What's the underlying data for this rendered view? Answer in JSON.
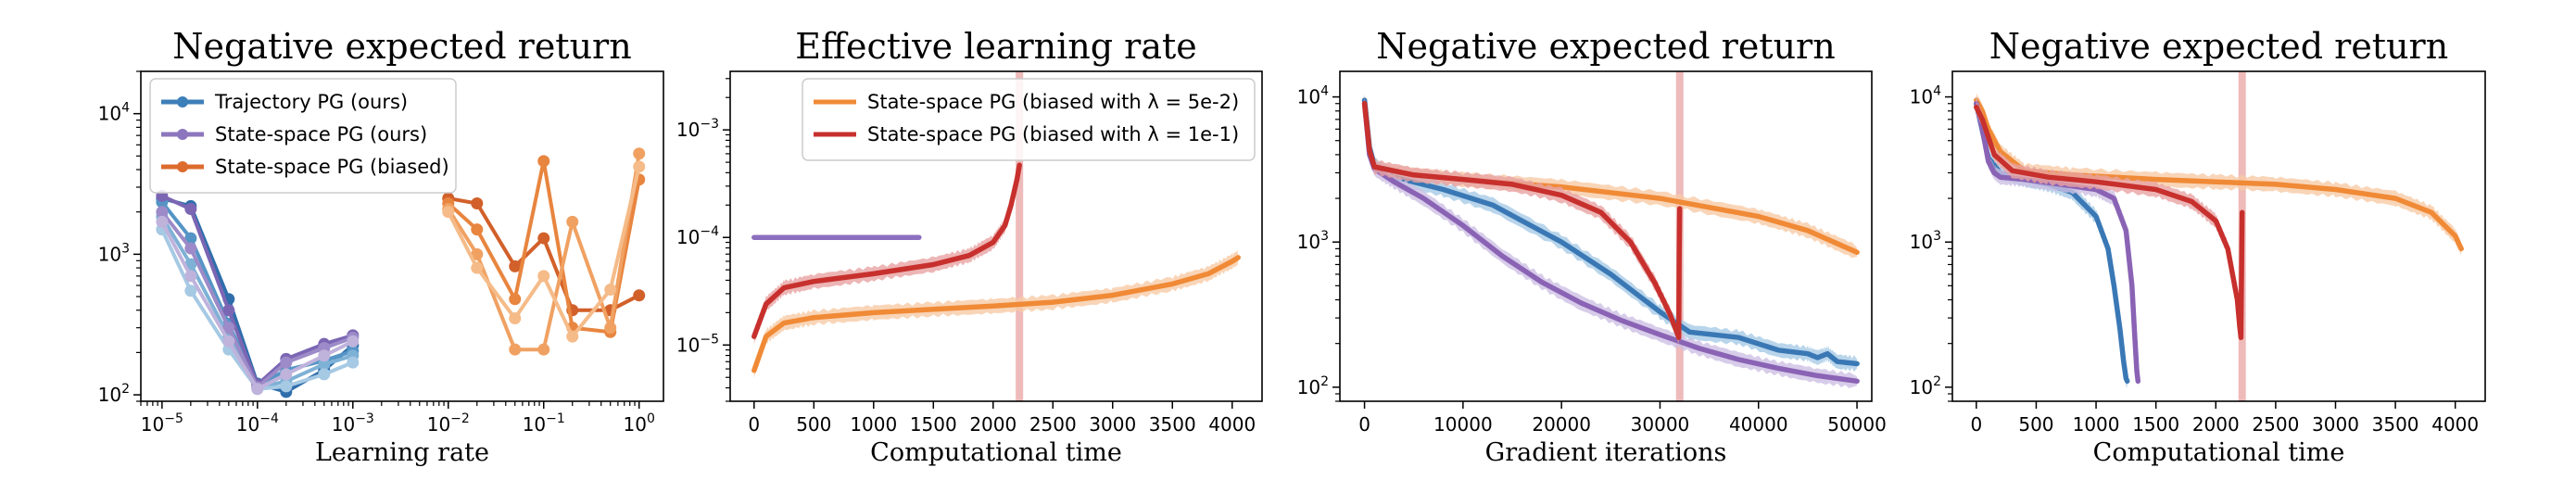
{
  "chart_data": [
    {
      "type": "line",
      "title": "Negative expected return",
      "xlabel": "Learning rate",
      "ylabel": "",
      "xscale": "log",
      "yscale": "log",
      "xlim": [
        6e-06,
        1.8
      ],
      "ylim": [
        90,
        20000
      ],
      "xticks": [
        {
          "v": 1e-05,
          "b": "10",
          "e": "−5"
        },
        {
          "v": 0.0001,
          "b": "10",
          "e": "−4"
        },
        {
          "v": 0.001,
          "b": "10",
          "e": "−3"
        },
        {
          "v": 0.01,
          "b": "10",
          "e": "−2"
        },
        {
          "v": 0.1,
          "b": "10",
          "e": "−1"
        },
        {
          "v": 1,
          "b": "10",
          "e": "0"
        }
      ],
      "yticks": [
        {
          "v": 100,
          "b": "10",
          "e": "2"
        },
        {
          "v": 1000,
          "b": "10",
          "e": "3"
        },
        {
          "v": 10000,
          "b": "10",
          "e": "4"
        }
      ],
      "legend": {
        "position": "top-left",
        "entries": [
          {
            "label": "Trajectory PG (ours)",
            "color": "#3d7fb8"
          },
          {
            "label": "State-space PG (ours)",
            "color": "#8c76bd"
          },
          {
            "label": "State-space PG (biased)",
            "color": "#dd6b2d"
          }
        ]
      },
      "series": [
        {
          "name": "Trajectory PG (ours)",
          "color": "#2f6eab",
          "x": [
            1e-05,
            2e-05,
            5e-05,
            0.0001,
            0.0002,
            0.0005,
            0.001
          ],
          "y": [
            2500,
            2200,
            480,
            120,
            105,
            150,
            225
          ]
        },
        {
          "color": "#5595c6",
          "x": [
            1e-05,
            2e-05,
            5e-05,
            0.0001,
            0.0002,
            0.0005,
            0.001
          ],
          "y": [
            2350,
            1300,
            320,
            115,
            150,
            175,
            205
          ]
        },
        {
          "color": "#7eb1d6",
          "x": [
            1e-05,
            2e-05,
            5e-05,
            0.0001,
            0.0002,
            0.0005,
            0.001
          ],
          "y": [
            1850,
            850,
            260,
            112,
            125,
            165,
            190
          ]
        },
        {
          "color": "#a6c9e4",
          "x": [
            1e-05,
            2e-05,
            5e-05,
            0.0001,
            0.0002,
            0.0005,
            0.001
          ],
          "y": [
            1500,
            550,
            210,
            110,
            115,
            140,
            170
          ]
        },
        {
          "name": "State-space PG (ours)",
          "color": "#7b66b4",
          "x": [
            1e-05,
            2e-05,
            5e-05,
            0.0001,
            0.0002,
            0.0005,
            0.001
          ],
          "y": [
            2600,
            2100,
            400,
            118,
            180,
            230,
            265
          ]
        },
        {
          "color": "#9c8bc8",
          "x": [
            1e-05,
            2e-05,
            5e-05,
            0.0001,
            0.0002,
            0.0005,
            0.001
          ],
          "y": [
            2000,
            1100,
            300,
            113,
            170,
            215,
            255
          ]
        },
        {
          "color": "#bfb3dc",
          "x": [
            1e-05,
            2e-05,
            5e-05,
            0.0001,
            0.0002,
            0.0005,
            0.001
          ],
          "y": [
            1700,
            700,
            240,
            110,
            140,
            190,
            240
          ]
        },
        {
          "name": "State-space PG (biased)",
          "color": "#d2602a",
          "x": [
            0.01,
            0.02,
            0.05,
            0.1,
            0.2,
            0.5,
            1
          ],
          "y": [
            2500,
            2300,
            820,
            1300,
            400,
            400,
            510
          ]
        },
        {
          "color": "#e8853f",
          "x": [
            0.01,
            0.02,
            0.05,
            0.1,
            0.2,
            0.5,
            1
          ],
          "y": [
            2300,
            1500,
            480,
            4600,
            300,
            280,
            3400
          ]
        },
        {
          "color": "#f0a162",
          "x": [
            0.01,
            0.02,
            0.05,
            0.1,
            0.2,
            0.5,
            1
          ],
          "y": [
            2100,
            1000,
            210,
            210,
            1700,
            300,
            5200
          ]
        },
        {
          "color": "#f5bb88",
          "x": [
            0.01,
            0.02,
            0.05,
            0.1,
            0.2,
            0.5,
            1
          ],
          "y": [
            2000,
            800,
            350,
            700,
            260,
            560,
            4200
          ]
        }
      ]
    },
    {
      "type": "line",
      "title": "Effective learning rate",
      "xlabel": "Computational time",
      "ylabel": "",
      "xscale": "linear",
      "yscale": "log",
      "xlim": [
        -200,
        4250
      ],
      "ylim": [
        3e-06,
        0.0035
      ],
      "xticks": [
        {
          "v": 0,
          "t": "0"
        },
        {
          "v": 500,
          "t": "500"
        },
        {
          "v": 1000,
          "t": "1000"
        },
        {
          "v": 1500,
          "t": "1500"
        },
        {
          "v": 2000,
          "t": "2000"
        },
        {
          "v": 2500,
          "t": "2500"
        },
        {
          "v": 3000,
          "t": "3000"
        },
        {
          "v": 3500,
          "t": "3500"
        },
        {
          "v": 4000,
          "t": "4000"
        }
      ],
      "yticks": [
        {
          "v": 1e-05,
          "b": "10",
          "e": "−5"
        },
        {
          "v": 0.0001,
          "b": "10",
          "e": "−4"
        },
        {
          "v": 0.001,
          "b": "10",
          "e": "−3"
        }
      ],
      "legend": {
        "position": "top-right",
        "entries": [
          {
            "label": "State-space PG (biased with λ = 5e-2)",
            "color": "#f08a36"
          },
          {
            "label": "State-space PG (biased with λ = 1e-1)",
            "color": "#c7302d"
          }
        ]
      },
      "vlines": [
        {
          "x": 2220,
          "color": "#e9a3a3"
        }
      ],
      "series": [
        {
          "color": "#8c6fbe",
          "x": [
            0,
            1380
          ],
          "y": [
            0.0001,
            0.0001
          ]
        },
        {
          "name": "State-space PG (biased with λ = 1e-1)",
          "color": "#c7302d",
          "band": "#e9a3a3",
          "x": [
            0,
            100,
            250,
            500,
            1000,
            1500,
            1800,
            2000,
            2100,
            2150,
            2200,
            2220
          ],
          "y": [
            1.2e-05,
            2.4e-05,
            3.4e-05,
            3.9e-05,
            4.6e-05,
            5.6e-05,
            6.8e-05,
            9e-05,
            0.00013,
            0.0002,
            0.00035,
            0.00047
          ]
        },
        {
          "name": "State-space PG (biased with λ = 5e-2)",
          "color": "#f08a36",
          "band": "#f8cba6",
          "x": [
            0,
            100,
            250,
            500,
            1000,
            1500,
            2000,
            2500,
            3000,
            3500,
            3800,
            4000,
            4050
          ],
          "y": [
            5.8e-06,
            1.2e-05,
            1.6e-05,
            1.8e-05,
            2e-05,
            2.15e-05,
            2.3e-05,
            2.5e-05,
            2.9e-05,
            3.7e-05,
            4.6e-05,
            6e-05,
            6.5e-05
          ]
        }
      ]
    },
    {
      "type": "line",
      "title": "Negative expected return",
      "xlabel": "Gradient iterations",
      "ylabel": "",
      "xscale": "linear",
      "yscale": "log",
      "xlim": [
        -2500,
        51500
      ],
      "ylim": [
        80,
        15000
      ],
      "xticks": [
        {
          "v": 0,
          "t": "0"
        },
        {
          "v": 10000,
          "t": "10000"
        },
        {
          "v": 20000,
          "t": "20000"
        },
        {
          "v": 30000,
          "t": "30000"
        },
        {
          "v": 40000,
          "t": "40000"
        },
        {
          "v": 50000,
          "t": "50000"
        }
      ],
      "yticks": [
        {
          "v": 100,
          "b": "10",
          "e": "2"
        },
        {
          "v": 1000,
          "b": "10",
          "e": "3"
        },
        {
          "v": 10000,
          "b": "10",
          "e": "4"
        }
      ],
      "vlines": [
        {
          "x": 32000,
          "color": "#e9a3a3"
        }
      ],
      "series": [
        {
          "color": "#f08a36",
          "band": "#f8cba6",
          "x": [
            0,
            500,
            1000,
            2000,
            5000,
            10000,
            20000,
            30000,
            40000,
            45000,
            50000
          ],
          "y": [
            9500,
            4500,
            3400,
            3100,
            2900,
            2700,
            2400,
            2000,
            1500,
            1200,
            850
          ]
        },
        {
          "color": "#3a78b5",
          "band": "#a8cbe6",
          "x": [
            0,
            500,
            1000,
            3000,
            8000,
            13000,
            20000,
            25000,
            30000,
            33000,
            38000,
            42000,
            45000,
            46000,
            47000,
            48000,
            50000
          ],
          "y": [
            9500,
            4500,
            3400,
            2800,
            2300,
            1800,
            1000,
            600,
            330,
            240,
            220,
            180,
            170,
            160,
            170,
            150,
            145
          ]
        },
        {
          "color": "#8a63b5",
          "band": "#cdbfe3",
          "x": [
            0,
            500,
            1000,
            3000,
            6000,
            10000,
            14000,
            18000,
            22000,
            26000,
            30000,
            34000,
            38000,
            42000,
            46000,
            50000
          ],
          "y": [
            9000,
            4000,
            3200,
            2600,
            2000,
            1300,
            800,
            530,
            380,
            290,
            230,
            185,
            155,
            135,
            120,
            110
          ]
        },
        {
          "color": "#c7302d",
          "band": "#e9a3a3",
          "x": [
            0,
            500,
            1000,
            5000,
            10000,
            15000,
            20000,
            24000,
            27000,
            29500,
            31000,
            31800,
            31900,
            31950,
            32000
          ],
          "y": [
            9000,
            4300,
            3300,
            2900,
            2700,
            2500,
            2100,
            1600,
            1000,
            520,
            320,
            230,
            220,
            800,
            1700
          ]
        }
      ]
    },
    {
      "type": "line",
      "title": "Negative expected return",
      "xlabel": "Computational time",
      "ylabel": "",
      "xscale": "linear",
      "yscale": "log",
      "xlim": [
        -200,
        4250
      ],
      "ylim": [
        80,
        15000
      ],
      "xticks": [
        {
          "v": 0,
          "t": "0"
        },
        {
          "v": 500,
          "t": "500"
        },
        {
          "v": 1000,
          "t": "1000"
        },
        {
          "v": 1500,
          "t": "1500"
        },
        {
          "v": 2000,
          "t": "2000"
        },
        {
          "v": 2500,
          "t": "2500"
        },
        {
          "v": 3000,
          "t": "3000"
        },
        {
          "v": 3500,
          "t": "3500"
        },
        {
          "v": 4000,
          "t": "4000"
        }
      ],
      "yticks": [
        {
          "v": 100,
          "b": "10",
          "e": "2"
        },
        {
          "v": 1000,
          "b": "10",
          "e": "3"
        },
        {
          "v": 10000,
          "b": "10",
          "e": "4"
        }
      ],
      "vlines": [
        {
          "x": 2220,
          "color": "#e9a3a3"
        }
      ],
      "series": [
        {
          "color": "#f08a36",
          "band": "#f8cba6",
          "x": [
            0,
            50,
            100,
            200,
            400,
            800,
            1500,
            2000,
            2500,
            3000,
            3500,
            3800,
            4000,
            4050
          ],
          "y": [
            9500,
            8000,
            6000,
            4200,
            3100,
            2900,
            2700,
            2600,
            2500,
            2300,
            2000,
            1600,
            1100,
            900
          ]
        },
        {
          "color": "#3a78b5",
          "band": "#a8cbe6",
          "x": [
            0,
            100,
            200,
            400,
            600,
            800,
            1000,
            1100,
            1150,
            1200,
            1230,
            1250,
            1260
          ],
          "y": [
            9000,
            3800,
            3000,
            2700,
            2500,
            2200,
            1500,
            900,
            500,
            250,
            150,
            115,
            110
          ]
        },
        {
          "color": "#8a63b5",
          "band": "#cdbfe3",
          "x": [
            0,
            50,
            100,
            150,
            200,
            400,
            700,
            1000,
            1150,
            1250,
            1300,
            1320,
            1340,
            1350
          ],
          "y": [
            9000,
            6000,
            3600,
            3000,
            2800,
            2700,
            2500,
            2300,
            2000,
            1200,
            500,
            250,
            130,
            110
          ]
        },
        {
          "color": "#c7302d",
          "band": "#e9a3a3",
          "x": [
            0,
            50,
            150,
            300,
            600,
            1000,
            1500,
            1800,
            2000,
            2100,
            2180,
            2200,
            2210,
            2220
          ],
          "y": [
            8500,
            7000,
            4000,
            3100,
            2800,
            2600,
            2300,
            1900,
            1400,
            900,
            400,
            260,
            220,
            1600
          ]
        }
      ]
    }
  ]
}
